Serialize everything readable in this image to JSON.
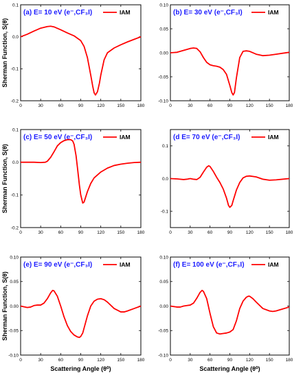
{
  "figure": {
    "y_axis_label": "Sherman Function, S(θ)",
    "x_axis_label": "Scattering Angle (θ⁰)"
  },
  "chart_data": [
    {
      "type": "line",
      "title": "(a) E= 10 eV (e⁻,CF₃I)",
      "xlabel": "",
      "ylabel": "Sherman Function, S(θ)",
      "xlim": [
        0,
        180
      ],
      "ylim": [
        -0.2,
        0.1
      ],
      "xticks": [
        0,
        30,
        60,
        90,
        120,
        150,
        180
      ],
      "yticks": [
        -0.2,
        -0.1,
        0.0,
        0.1
      ],
      "ytick_labels": [
        "-0.2",
        "-0.1",
        "0.0",
        "0.1"
      ],
      "legend_position": "top-right",
      "series": [
        {
          "name": "IAM",
          "color": "#ff0000",
          "x": [
            0,
            10,
            20,
            30,
            40,
            45,
            50,
            60,
            70,
            80,
            90,
            95,
            100,
            105,
            108,
            110,
            112,
            115,
            118,
            120,
            125,
            130,
            140,
            150,
            160,
            170,
            180
          ],
          "y": [
            0.0,
            0.008,
            0.018,
            0.027,
            0.032,
            0.033,
            0.031,
            0.022,
            0.012,
            0.003,
            -0.012,
            -0.03,
            -0.065,
            -0.12,
            -0.155,
            -0.175,
            -0.182,
            -0.172,
            -0.145,
            -0.12,
            -0.072,
            -0.05,
            -0.035,
            -0.025,
            -0.016,
            -0.008,
            0.0
          ]
        }
      ]
    },
    {
      "type": "line",
      "title": "(b) E= 30 eV (e⁻,CF₃I)",
      "xlabel": "",
      "ylabel": "",
      "xlim": [
        0,
        180
      ],
      "ylim": [
        -0.1,
        0.1
      ],
      "xticks": [
        0,
        30,
        60,
        90,
        120,
        150,
        180
      ],
      "yticks": [
        -0.1,
        -0.05,
        0.0,
        0.05,
        0.1
      ],
      "ytick_labels": [
        "-0.10",
        "-0.05",
        "0.00",
        "0.05",
        "0.10"
      ],
      "legend_position": "top-right",
      "series": [
        {
          "name": "IAM",
          "color": "#ff0000",
          "x": [
            0,
            10,
            20,
            30,
            35,
            40,
            45,
            50,
            55,
            60,
            65,
            70,
            75,
            80,
            85,
            90,
            93,
            95,
            97,
            100,
            105,
            110,
            115,
            120,
            130,
            140,
            150,
            160,
            170,
            180
          ],
          "y": [
            0.0,
            0.001,
            0.005,
            0.009,
            0.01,
            0.009,
            0.002,
            -0.01,
            -0.02,
            -0.025,
            -0.027,
            -0.028,
            -0.03,
            -0.035,
            -0.045,
            -0.068,
            -0.083,
            -0.088,
            -0.083,
            -0.052,
            -0.01,
            0.003,
            0.004,
            0.003,
            -0.003,
            -0.006,
            -0.005,
            -0.003,
            -0.001,
            0.001
          ]
        }
      ]
    },
    {
      "type": "line",
      "title": "(c) E= 50 eV (e⁻,CF₃I)",
      "xlabel": "",
      "ylabel": "Sherman Function, S(θ)",
      "xlim": [
        0,
        180
      ],
      "ylim": [
        -0.2,
        0.1
      ],
      "xticks": [
        0,
        30,
        60,
        90,
        120,
        150,
        180
      ],
      "yticks": [
        -0.2,
        -0.1,
        0.0,
        0.1
      ],
      "ytick_labels": [
        "-0.2",
        "-0.1",
        "0.0",
        "0.1"
      ],
      "legend_position": "top-right",
      "series": [
        {
          "name": "IAM",
          "color": "#ff0000",
          "x": [
            0,
            10,
            20,
            30,
            37,
            40,
            45,
            50,
            55,
            60,
            65,
            70,
            75,
            78,
            80,
            83,
            85,
            88,
            90,
            93,
            95,
            100,
            105,
            110,
            120,
            130,
            140,
            150,
            160,
            170,
            180
          ],
          "y": [
            0.0,
            0.0,
            0.0,
            -0.001,
            0.0,
            0.003,
            0.015,
            0.032,
            0.05,
            0.06,
            0.066,
            0.069,
            0.069,
            0.065,
            0.055,
            0.02,
            -0.015,
            -0.07,
            -0.1,
            -0.125,
            -0.122,
            -0.09,
            -0.065,
            -0.048,
            -0.03,
            -0.018,
            -0.01,
            -0.006,
            -0.003,
            -0.001,
            0.0
          ]
        }
      ]
    },
    {
      "type": "line",
      "title": "(d E= 70 eV (e⁻,CF₃I)",
      "xlabel": "",
      "ylabel": "",
      "xlim": [
        0,
        180
      ],
      "ylim": [
        -0.15,
        0.15
      ],
      "xticks": [
        0,
        30,
        60,
        90,
        120,
        150,
        180
      ],
      "yticks": [
        -0.1,
        0.0,
        0.1
      ],
      "ytick_labels": [
        "-0.1",
        "0.0",
        "0.1"
      ],
      "legend_position": "top-right",
      "series": [
        {
          "name": "IAM",
          "color": "#ff0000",
          "x": [
            0,
            10,
            20,
            25,
            30,
            35,
            40,
            45,
            50,
            55,
            58,
            60,
            65,
            70,
            75,
            80,
            85,
            88,
            90,
            93,
            95,
            100,
            105,
            110,
            115,
            120,
            130,
            140,
            150,
            160,
            170,
            180
          ],
          "y": [
            0.0,
            -0.001,
            -0.003,
            -0.002,
            0.0,
            -0.002,
            -0.003,
            0.004,
            0.02,
            0.035,
            0.039,
            0.037,
            0.022,
            0.004,
            -0.012,
            -0.032,
            -0.06,
            -0.082,
            -0.088,
            -0.082,
            -0.068,
            -0.035,
            -0.012,
            0.002,
            0.007,
            0.008,
            0.005,
            -0.002,
            -0.005,
            -0.004,
            -0.002,
            0.0
          ]
        }
      ]
    },
    {
      "type": "line",
      "title": "(e) E= 90 eV (e⁻,CF₃I)",
      "xlabel": "Scattering Angle (θ⁰)",
      "ylabel": "Sherman Function, S(θ)",
      "xlim": [
        0,
        180
      ],
      "ylim": [
        -0.1,
        0.1
      ],
      "xticks": [
        0,
        30,
        60,
        90,
        120,
        150,
        180
      ],
      "yticks": [
        -0.1,
        -0.05,
        0.0,
        0.05,
        0.1
      ],
      "ytick_labels": [
        "-0.10",
        "-0.05",
        "0.00",
        "0.05",
        "0.10"
      ],
      "legend_position": "top-right",
      "series": [
        {
          "name": "IAM",
          "color": "#ff0000",
          "x": [
            0,
            10,
            15,
            20,
            25,
            30,
            35,
            40,
            45,
            48,
            50,
            55,
            60,
            65,
            70,
            75,
            80,
            85,
            88,
            90,
            93,
            95,
            100,
            105,
            110,
            115,
            120,
            125,
            130,
            140,
            150,
            155,
            160,
            170,
            180
          ],
          "y": [
            0.0,
            -0.003,
            -0.002,
            0.001,
            0.002,
            0.002,
            0.006,
            0.015,
            0.027,
            0.032,
            0.031,
            0.02,
            0.0,
            -0.022,
            -0.04,
            -0.052,
            -0.059,
            -0.063,
            -0.064,
            -0.062,
            -0.055,
            -0.045,
            -0.02,
            0.0,
            0.01,
            0.014,
            0.015,
            0.013,
            0.008,
            -0.005,
            -0.012,
            -0.012,
            -0.01,
            -0.005,
            0.0
          ]
        }
      ]
    },
    {
      "type": "line",
      "title": "(f) E= 100 eV (e⁻,CF₃I)",
      "xlabel": "Scattering Angle (θ⁰)",
      "ylabel": "",
      "xlim": [
        0,
        180
      ],
      "ylim": [
        -0.1,
        0.1
      ],
      "xticks": [
        0,
        30,
        60,
        90,
        120,
        150,
        180
      ],
      "yticks": [
        -0.1,
        -0.05,
        0.0,
        0.05,
        0.1
      ],
      "ytick_labels": [
        "-0.10",
        "-0.05",
        "0.00",
        "0.05",
        "0.10"
      ],
      "legend_position": "top-right",
      "series": [
        {
          "name": "IAM",
          "color": "#ff0000",
          "x": [
            0,
            10,
            15,
            20,
            25,
            30,
            35,
            40,
            45,
            48,
            50,
            55,
            60,
            65,
            70,
            75,
            80,
            85,
            90,
            95,
            100,
            105,
            110,
            115,
            118,
            120,
            125,
            130,
            140,
            150,
            155,
            160,
            170,
            180
          ],
          "y": [
            0.0,
            -0.002,
            -0.002,
            0.0,
            0.001,
            0.002,
            0.006,
            0.016,
            0.028,
            0.032,
            0.03,
            0.015,
            -0.015,
            -0.042,
            -0.055,
            -0.057,
            -0.056,
            -0.055,
            -0.053,
            -0.048,
            -0.03,
            -0.005,
            0.01,
            0.018,
            0.02,
            0.02,
            0.015,
            0.008,
            -0.005,
            -0.01,
            -0.011,
            -0.01,
            -0.006,
            -0.002
          ]
        }
      ]
    }
  ]
}
